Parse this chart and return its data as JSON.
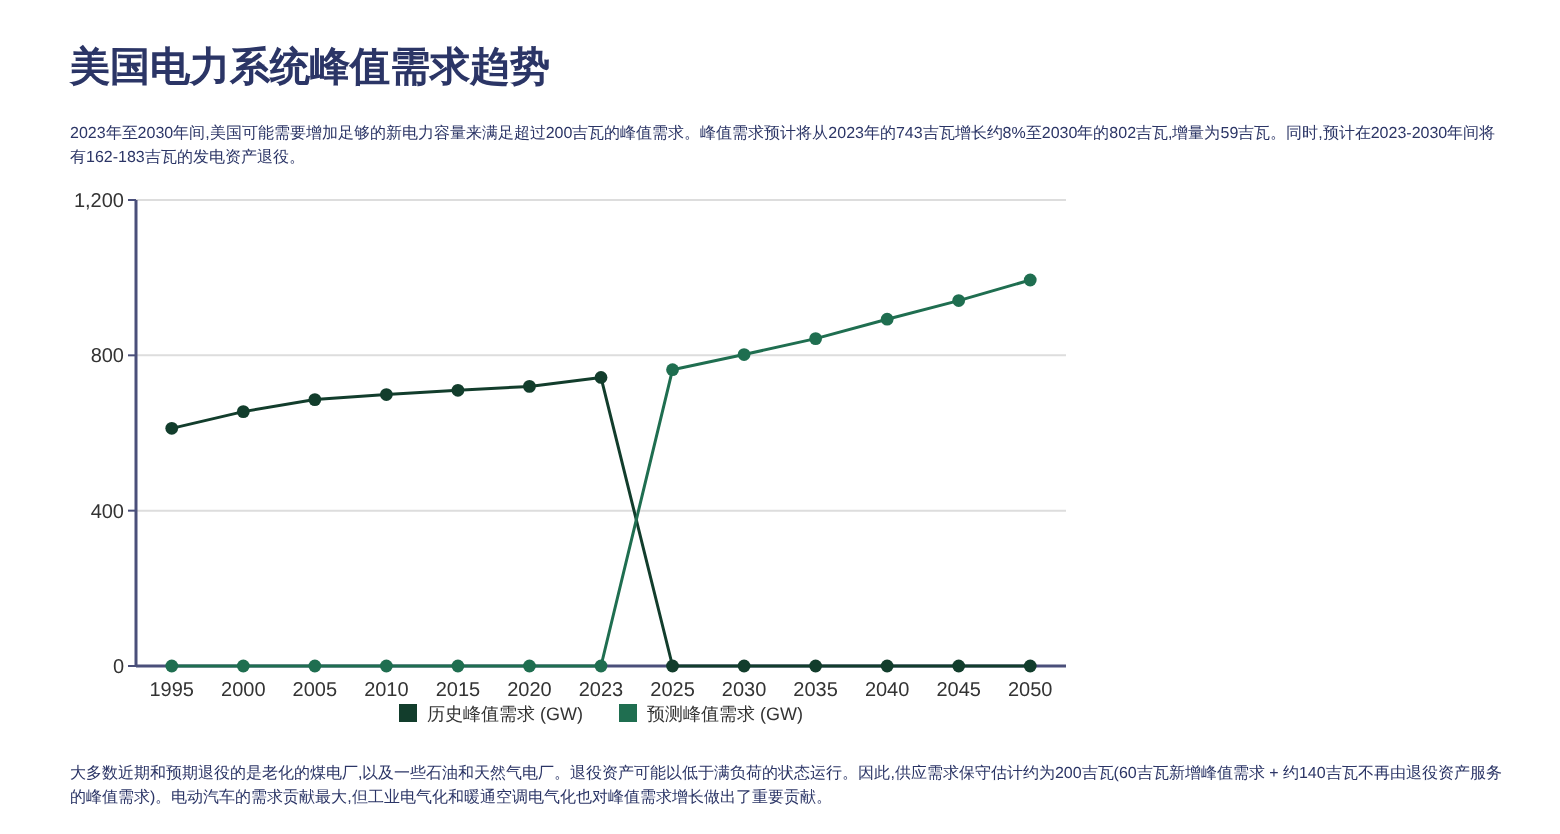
{
  "chart_data": {
    "type": "line",
    "title": "美国电力系统峰值需求趋势",
    "subtitle": "2023年至2030年间,美国可能需要增加足够的新电力容量来满足超过200吉瓦的峰值需求。峰值需求预计将从2023年的743吉瓦增长约8%至2030年的802吉瓦,增量为59吉瓦。同时,预计在2023-2030年间将有162-183吉瓦的发电资产退役。",
    "categories": [
      "1995",
      "2000",
      "2005",
      "2010",
      "2015",
      "2020",
      "2023",
      "2025",
      "2030",
      "2035",
      "2040",
      "2045",
      "2050"
    ],
    "series": [
      {
        "name": "历史峰值需求 (GW)",
        "color": "#123d2c",
        "values": [
          612,
          655,
          686,
          699,
          710,
          720,
          743,
          0,
          0,
          0,
          0,
          0,
          0
        ]
      },
      {
        "name": "预测峰值需求 (GW)",
        "color": "#1f6e50",
        "values": [
          0,
          0,
          0,
          0,
          0,
          0,
          0,
          763,
          802,
          843,
          893,
          941,
          994
        ]
      }
    ],
    "ylim": [
      0,
      1200
    ],
    "yticks": [
      0,
      400,
      800,
      {
        "value": 1200,
        "label": "1,200"
      }
    ],
    "grid": "y",
    "legend": "bottom",
    "marker": "circle",
    "line_style": "solid",
    "annotations": [
      "大多数近期和预期退役的是老化的煤电厂,以及一些石油和天然气电厂。退役资产可能以低于满负荷的状态运行。因此,供应需求保守估计约为200吉瓦(60吉瓦新增峰值需求 + 约140吉瓦不再由退役资产服务的峰值需求)。电动汽车的需求贡献最大,但工业电气化和暖通空调电气化也对峰值需求增长做出了重要贡献。"
    ]
  }
}
